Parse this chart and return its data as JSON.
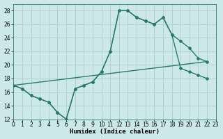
{
  "background_color": "#cde8e8",
  "grid_color": "#aacfcf",
  "line_color": "#2a7a6a",
  "marker_style": "D",
  "marker_size": 2.0,
  "line_width": 1.0,
  "line1_x": [
    0,
    1,
    2,
    3,
    4,
    5,
    6,
    7,
    8,
    9,
    10,
    11,
    12,
    13,
    14,
    15,
    16,
    17,
    18,
    19,
    20,
    21,
    22
  ],
  "line1_y": [
    17,
    16.5,
    15.5,
    15,
    14.5,
    13,
    12,
    16.5,
    17.0,
    17.5,
    19,
    22,
    28,
    28,
    27,
    26.5,
    26.0,
    27,
    24.5,
    23.5,
    22.5,
    21.0,
    20.5
  ],
  "line2_x": [
    0,
    1,
    2,
    3,
    4,
    5,
    6,
    7,
    8,
    9,
    10,
    11,
    12,
    13,
    14,
    15,
    16,
    17,
    18,
    19,
    20,
    21,
    22
  ],
  "line2_y": [
    17,
    16.5,
    15.5,
    15,
    14.5,
    13,
    12,
    16.5,
    17.0,
    17.5,
    19,
    22,
    28,
    28,
    27,
    26.5,
    26.0,
    27,
    24.5,
    19.5,
    19.0,
    18.5,
    18.0
  ],
  "line3_x": [
    0,
    22
  ],
  "line3_y": [
    17,
    20.5
  ],
  "xlim": [
    0,
    23
  ],
  "ylim": [
    12,
    29
  ],
  "yticks": [
    12,
    14,
    16,
    18,
    20,
    22,
    24,
    26,
    28
  ],
  "xticks": [
    0,
    1,
    2,
    3,
    4,
    5,
    6,
    7,
    8,
    9,
    10,
    11,
    12,
    13,
    14,
    15,
    16,
    17,
    18,
    19,
    20,
    21,
    22,
    23
  ],
  "xtick_labels": [
    "0",
    "1",
    "2",
    "3",
    "4",
    "5",
    "6",
    "7",
    "8",
    "9",
    "10",
    "11",
    "12",
    "13",
    "14",
    "15",
    "16",
    "17",
    "18",
    "19",
    "20",
    "21",
    "22",
    "23"
  ],
  "xlabel": "Humidex (Indice chaleur)",
  "xlabel_fontsize": 6.5,
  "tick_fontsize": 5.5,
  "ylabel_fontsize": 6
}
